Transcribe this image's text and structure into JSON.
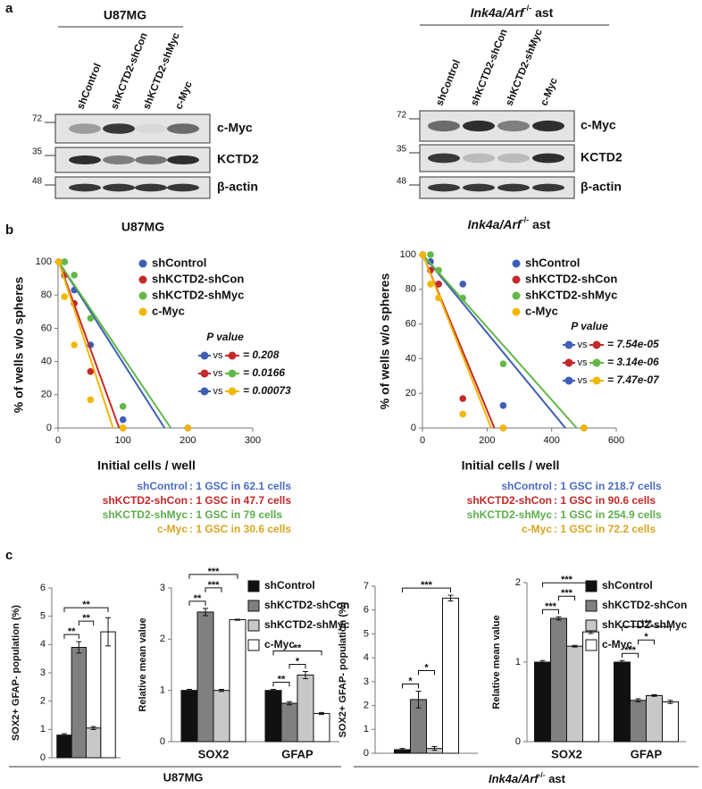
{
  "panel_labels": [
    "a",
    "b",
    "c"
  ],
  "blots": [
    {
      "title": "U87MG",
      "lanes": [
        "shControl",
        "shKCTD2-shCon",
        "shKCTD2-shMyc",
        "c-Myc"
      ],
      "markers": [
        72,
        35,
        48
      ],
      "bands": [
        "c-Myc",
        "KCTD2",
        "β-actin"
      ]
    },
    {
      "title": [
        "Ink4a/Arf",
        "-/-",
        " ast"
      ],
      "lanes": [
        "shControl",
        "shKCTD2-shCon",
        "shKCTD2-shMyc",
        "c-Myc"
      ],
      "markers": [
        72,
        35,
        48
      ],
      "bands": [
        "c-Myc",
        "KCTD2",
        "β-actin"
      ]
    }
  ],
  "chart_data": [
    {
      "type": "scatter",
      "title": "U87MG",
      "x_label": "Initial cells / well",
      "y_label": "% of wells w/o spheres",
      "x": [
        1,
        10,
        25,
        50,
        100,
        200
      ],
      "xlim": [
        0,
        300
      ],
      "xticks": [
        0,
        100,
        200,
        300
      ],
      "ylim": [
        0,
        100
      ],
      "yticks": [
        0,
        20,
        40,
        60,
        80,
        100
      ],
      "fit": "linear",
      "series": [
        {
          "name": "shControl",
          "color": "#3e5fb5",
          "values": [
            100,
            100,
            83,
            50,
            5,
            0
          ]
        },
        {
          "name": "shKCTD2-shCon",
          "color": "#c42a2a",
          "values": [
            100,
            92,
            75,
            34,
            0,
            0
          ]
        },
        {
          "name": "shKCTD2-shMyc",
          "color": "#62b846",
          "values": [
            100,
            100,
            92,
            66,
            13,
            0
          ]
        },
        {
          "name": "c-Myc",
          "color": "#f2b705",
          "values": [
            100,
            79,
            50,
            17,
            0,
            0
          ]
        }
      ],
      "p_value_title": "P value",
      "p_values": [
        {
          "colors": [
            "#3e5fb5",
            "#c42a2a"
          ],
          "vs": "vs",
          "label": "= 0.208"
        },
        {
          "colors": [
            "#c42a2a",
            "#62b846"
          ],
          "vs": "vs",
          "label": "= 0.0166"
        },
        {
          "colors": [
            "#3e5fb5",
            "#f2b705"
          ],
          "vs": "vs",
          "label": "= 0.00073"
        }
      ],
      "gsc": [
        {
          "name": "shControl",
          "color": "#4a6cc0",
          "text": ": 1 GSC in 62.1 cells"
        },
        {
          "name": "shKCTD2-shCon",
          "color": "#c0282a",
          "text": ": 1 GSC in 47.7 cells"
        },
        {
          "name": "shKCTD2-shMyc",
          "color": "#5cae4a",
          "text": ": 1 GSC in 79 cells"
        },
        {
          "name": "c-Myc",
          "color": "#d9a520",
          "text": ": 1 GSC in 30.6 cells"
        }
      ]
    },
    {
      "type": "scatter",
      "title": [
        "Ink4a/Arf",
        "-/-",
        " ast"
      ],
      "x_label": "Initial cells / well",
      "y_label": "% of wells w/o spheres",
      "x": [
        1,
        25,
        50,
        125,
        250,
        500
      ],
      "xlim": [
        0,
        600
      ],
      "xticks": [
        0,
        200,
        400,
        600
      ],
      "ylim": [
        0,
        100
      ],
      "yticks": [
        0,
        20,
        40,
        60,
        80,
        100
      ],
      "fit": "linear",
      "series": [
        {
          "name": "shControl",
          "color": "#3e5fb5",
          "values": [
            100,
            96,
            83,
            83,
            13,
            0
          ]
        },
        {
          "name": "shKCTD2-shCon",
          "color": "#c42a2a",
          "values": [
            100,
            91,
            83,
            17,
            0,
            0
          ]
        },
        {
          "name": "shKCTD2-shMyc",
          "color": "#62b846",
          "values": [
            100,
            100,
            91,
            75,
            37,
            0
          ]
        },
        {
          "name": "c-Myc",
          "color": "#f2b705",
          "values": [
            100,
            83,
            75,
            8,
            0,
            0
          ]
        }
      ],
      "p_value_title": "P value",
      "p_values": [
        {
          "colors": [
            "#3e5fb5",
            "#c42a2a"
          ],
          "vs": "vs",
          "label": "= 7.54e-05"
        },
        {
          "colors": [
            "#c42a2a",
            "#62b846"
          ],
          "vs": "vs",
          "label": "= 3.14e-06"
        },
        {
          "colors": [
            "#3e5fb5",
            "#f2b705"
          ],
          "vs": "vs",
          "label": "= 7.47e-07"
        }
      ],
      "gsc": [
        {
          "name": "shControl",
          "color": "#4a6cc0",
          "text": ": 1 GSC in 218.7 cells"
        },
        {
          "name": "shKCTD2-shCon",
          "color": "#c0282a",
          "text": ": 1 GSC in 90.6 cells"
        },
        {
          "name": "shKCTD2-shMyc",
          "color": "#5cae4a",
          "text": ": 1 GSC in 254.9 cells"
        },
        {
          "name": "c-Myc",
          "color": "#d9a520",
          "text": ": 1 GSC in 72.2 cells"
        }
      ]
    },
    {
      "type": "bar",
      "y_label": "SOX2+ GFAP- population (%)",
      "categories": [
        null
      ],
      "ylim": [
        0,
        6
      ],
      "yticks": [
        0,
        1,
        2,
        3,
        4,
        5,
        6
      ],
      "series": [
        {
          "color": "#111111",
          "values": [
            0.8
          ],
          "errors": [
            0.05
          ]
        },
        {
          "color": "#808080",
          "values": [
            3.9
          ],
          "errors": [
            0.2
          ]
        },
        {
          "color": "#c8c8c8",
          "values": [
            1.05
          ],
          "errors": [
            0.05
          ]
        },
        {
          "color": "#ffffff",
          "values": [
            4.45
          ],
          "errors": [
            0.5
          ]
        }
      ],
      "brackets": [
        {
          "category": 0,
          "between": [
            0,
            1
          ],
          "label": "**"
        },
        {
          "category": 0,
          "between": [
            1,
            2
          ],
          "label": "**"
        },
        {
          "category": 0,
          "between": [
            0,
            3
          ],
          "label": "**"
        }
      ]
    },
    {
      "type": "bar",
      "y_label": "Relative mean value",
      "categories": [
        "SOX2",
        "GFAP"
      ],
      "ylim": [
        0,
        3
      ],
      "yticks": [
        0,
        1,
        2,
        3
      ],
      "legend": true,
      "series": [
        {
          "name": "shControl",
          "color": "#111111",
          "values": [
            1,
            1
          ],
          "errors": [
            0.02,
            0.02
          ]
        },
        {
          "name": "shKCTD2-shCon",
          "color": "#808080",
          "values": [
            2.53,
            0.75
          ],
          "errors": [
            0.07,
            0.03
          ]
        },
        {
          "name": "shKCTD2-shMyc",
          "color": "#c8c8c8",
          "values": [
            1,
            1.3
          ],
          "errors": [
            0.02,
            0.07
          ]
        },
        {
          "name": "c-Myc",
          "color": "#ffffff",
          "values": [
            2.38,
            0.55
          ],
          "errors": [
            0.01,
            0.02
          ]
        }
      ],
      "brackets": [
        {
          "category": 0,
          "between": [
            0,
            1
          ],
          "label": "**"
        },
        {
          "category": 0,
          "between": [
            1,
            2
          ],
          "label": "***"
        },
        {
          "category": 0,
          "between": [
            0,
            3
          ],
          "label": "***"
        },
        {
          "category": 1,
          "between": [
            0,
            1
          ],
          "label": "**"
        },
        {
          "category": 1,
          "between": [
            1,
            2
          ],
          "label": "*"
        },
        {
          "category": 1,
          "between": [
            0,
            3
          ],
          "label": "**"
        }
      ]
    },
    {
      "type": "bar",
      "y_label": "SOX2+ GFAP- population (%)",
      "categories": [
        null
      ],
      "ylim": [
        0,
        7
      ],
      "yticks": [
        0,
        1,
        2,
        3,
        4,
        5,
        6,
        7
      ],
      "series": [
        {
          "color": "#111111",
          "values": [
            0.15
          ],
          "errors": [
            0.05
          ]
        },
        {
          "color": "#808080",
          "values": [
            2.25
          ],
          "errors": [
            0.35
          ]
        },
        {
          "color": "#c8c8c8",
          "values": [
            0.2
          ],
          "errors": [
            0.08
          ]
        },
        {
          "color": "#ffffff",
          "values": [
            6.5
          ],
          "errors": [
            0.12
          ]
        }
      ],
      "brackets": [
        {
          "category": 0,
          "between": [
            0,
            1
          ],
          "label": "*"
        },
        {
          "category": 0,
          "between": [
            1,
            2
          ],
          "label": "*"
        },
        {
          "category": 0,
          "between": [
            0,
            3
          ],
          "label": "***"
        }
      ]
    },
    {
      "type": "bar",
      "y_label": "Relative mean value",
      "categories": [
        "SOX2",
        "GFAP"
      ],
      "ylim": [
        0,
        2
      ],
      "yticks": [
        0,
        1,
        2
      ],
      "legend": true,
      "series": [
        {
          "name": "shControl",
          "color": "#111111",
          "values": [
            1,
            1
          ],
          "errors": [
            0.02,
            0.02
          ]
        },
        {
          "name": "shKCTD2-shCon",
          "color": "#808080",
          "values": [
            1.55,
            0.52
          ],
          "errors": [
            0.02,
            0.02
          ]
        },
        {
          "name": "shKCTD2-shMyc",
          "color": "#c8c8c8",
          "values": [
            1.2,
            0.58
          ],
          "errors": [
            0.01,
            0.01
          ]
        },
        {
          "name": "c-Myc",
          "color": "#ffffff",
          "values": [
            1.38,
            0.5
          ],
          "errors": [
            0.02,
            0.02
          ]
        }
      ],
      "brackets": [
        {
          "category": 0,
          "between": [
            0,
            1
          ],
          "label": "***"
        },
        {
          "category": 0,
          "between": [
            1,
            2
          ],
          "label": "***"
        },
        {
          "category": 0,
          "between": [
            0,
            3
          ],
          "label": "***"
        },
        {
          "category": 1,
          "between": [
            0,
            1
          ],
          "label": "***"
        },
        {
          "category": 1,
          "between": [
            1,
            2
          ],
          "label": "*"
        },
        {
          "category": 1,
          "between": [
            0,
            3
          ],
          "label": "***"
        }
      ]
    }
  ],
  "group_labels": [
    "U87MG",
    [
      "Ink4a/Arf",
      "-/-",
      " ast"
    ]
  ]
}
